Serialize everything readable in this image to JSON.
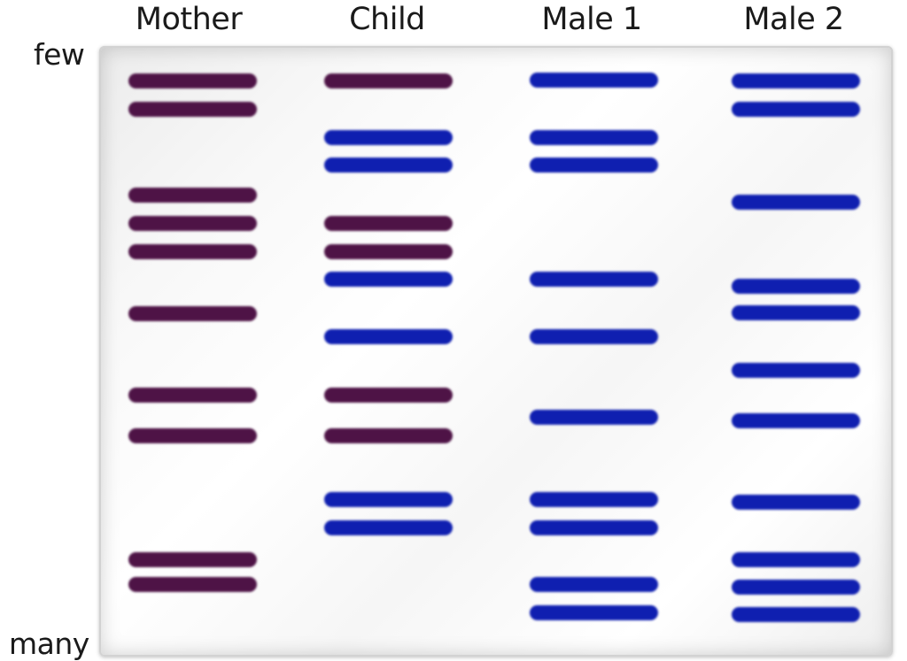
{
  "lanes": [
    {
      "label": "Mother",
      "color": "#4e1346",
      "bands": [
        91,
        123,
        220,
        252,
        284,
        354,
        446,
        492,
        632,
        660
      ]
    },
    {
      "label": "Child",
      "color": "#0f1fb0",
      "bands": [
        91,
        155,
        186,
        252,
        284,
        315,
        380,
        446,
        492,
        564,
        596
      ],
      "band_colors": [
        "#4e1346",
        "#0f1fb0",
        "#0f1fb0",
        "#4e1346",
        "#4e1346",
        "#0f1fb0",
        "#0f1fb0",
        "#4e1346",
        "#4e1346",
        "#0f1fb0",
        "#0f1fb0"
      ]
    },
    {
      "label": "Male 1",
      "color": "#0f1fb0",
      "bands": [
        90,
        155,
        186,
        315,
        380,
        471,
        564,
        596,
        660,
        692
      ]
    },
    {
      "label": "Male 2",
      "color": "#0f1fb0",
      "bands": [
        91,
        123,
        228,
        323,
        353,
        418,
        475,
        567,
        632,
        663,
        694
      ]
    }
  ],
  "axis": {
    "top_label": "few",
    "bottom_label": "many"
  }
}
